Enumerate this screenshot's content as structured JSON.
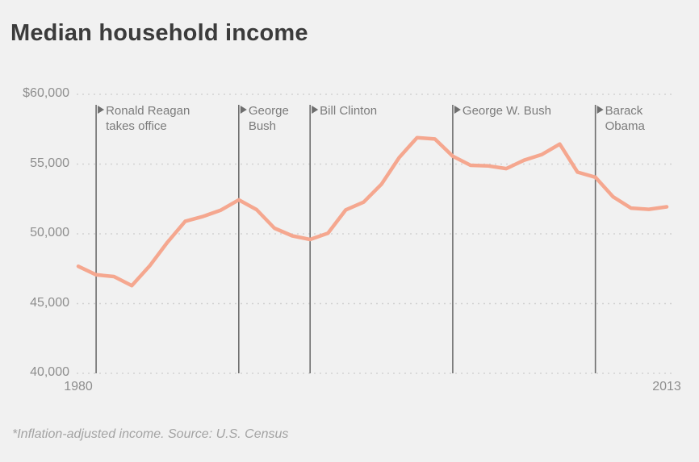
{
  "page": {
    "title": "Median household income",
    "footnote": "*Inflation-adjusted income. Source: U.S. Census"
  },
  "colors": {
    "background": "#f1f1f1",
    "data_line": "#f5a78f",
    "gridline": "#d2d2d2",
    "event_line": "#6e6e6e",
    "title_text": "#3b3b3b",
    "tick_text": "#8e8e8e",
    "annotation_text": "#7b7b7b",
    "footnote_text": "#a3a3a3"
  },
  "chart_data": {
    "type": "line",
    "title": "Median household income",
    "subtitle": "",
    "xlabel": "",
    "ylabel": "",
    "xlim": [
      1980,
      2013
    ],
    "ylim": [
      40000,
      60000
    ],
    "grid": "horizontal-dotted",
    "legend_position": "none",
    "x": [
      1980,
      1981,
      1982,
      1983,
      1984,
      1985,
      1986,
      1987,
      1988,
      1989,
      1990,
      1991,
      1992,
      1993,
      1994,
      1995,
      1996,
      1997,
      1998,
      1999,
      2000,
      2001,
      2002,
      2003,
      2004,
      2005,
      2006,
      2007,
      2008,
      2009,
      2010,
      2011,
      2012,
      2013
    ],
    "series": [
      {
        "name": "Median household income (inflation-adjusted)",
        "values": [
          47668,
          47066,
          46939,
          46287,
          47700,
          49400,
          50900,
          51250,
          51700,
          52432,
          51735,
          50404,
          49854,
          49594,
          50040,
          51719,
          52269,
          53551,
          55469,
          56895,
          56800,
          55562,
          54913,
          54865,
          54674,
          55278,
          55689,
          56436,
          54423,
          54059,
          52646,
          51842,
          51759,
          51939
        ]
      }
    ],
    "y_ticks": [
      {
        "value": 60000,
        "label": "$60,000"
      },
      {
        "value": 55000,
        "label": "55,000"
      },
      {
        "value": 50000,
        "label": "50,000"
      },
      {
        "value": 45000,
        "label": "45,000"
      },
      {
        "value": 40000,
        "label": "40,000"
      }
    ],
    "x_ticks": [
      {
        "year": 1980,
        "label": "1980"
      },
      {
        "year": 2013,
        "label": "2013"
      }
    ],
    "annotations": [
      {
        "year": 1981,
        "label_lines": [
          "Ronald Reagan",
          "takes office"
        ],
        "slug": "ronald-reagan"
      },
      {
        "year": 1989,
        "label_lines": [
          "George",
          "Bush"
        ],
        "slug": "george-bush"
      },
      {
        "year": 1993,
        "label_lines": [
          "Bill Clinton"
        ],
        "slug": "bill-clinton"
      },
      {
        "year": 2001,
        "label_lines": [
          "George W. Bush"
        ],
        "slug": "george-w-bush"
      },
      {
        "year": 2009,
        "label_lines": [
          "Barack",
          "Obama"
        ],
        "slug": "barack-obama"
      }
    ],
    "footnote": "*Inflation-adjusted income. Source: U.S. Census"
  }
}
